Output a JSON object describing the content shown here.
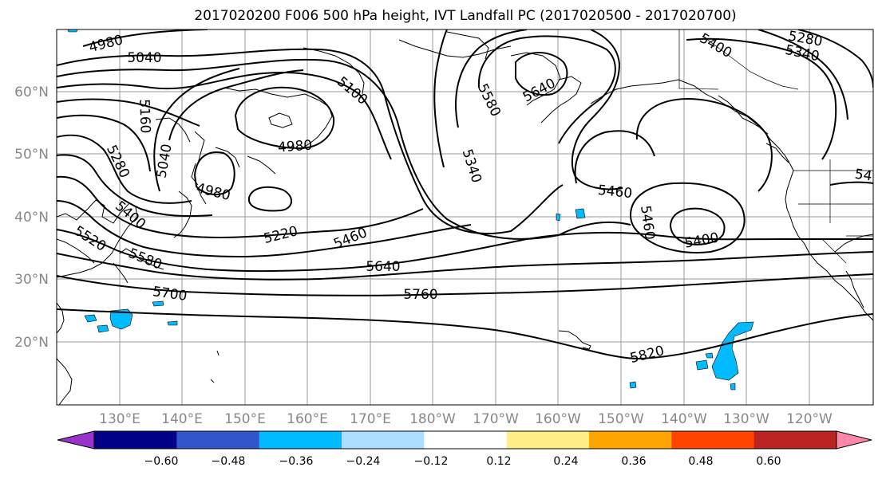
{
  "title": "2017020200 F006 500 hPa height, IVT Landfall PC (2017020500 - 2017020700)",
  "lat_labels": [
    "60°N",
    "50°N",
    "40°N",
    "30°N",
    "20°N"
  ],
  "lon_labels": [
    "130°E",
    "140°E",
    "150°E",
    "160°E",
    "170°E",
    "180°W",
    "170°W",
    "160°W",
    "150°W",
    "140°W",
    "130°W",
    "120°W"
  ],
  "contour_labels": [
    "4980",
    "5040",
    "5160",
    "5280",
    "5040",
    "4980",
    "4980",
    "5100",
    "5580",
    "5640",
    "5400",
    "5340",
    "5280",
    "5340",
    "5520",
    "5400",
    "5580",
    "5220",
    "5460",
    "5640",
    "5700",
    "5760",
    "5820",
    "5460",
    "5460",
    "5400",
    "54"
  ],
  "colorbar": {
    "colors": [
      "#9933cc",
      "#000088",
      "#3355cc",
      "#00bbff",
      "#aaddff",
      "#ffffff",
      "#ffee88",
      "#ffa500",
      "#ff4400",
      "#bb2222",
      "#ff88aa"
    ],
    "tick_labels": [
      "−0.60",
      "−0.48",
      "−0.36",
      "−0.24",
      "−0.12",
      "0.12",
      "0.24",
      "0.36",
      "0.48",
      "0.60"
    ]
  },
  "colors": {
    "grid": "#999999",
    "contour": "#000000",
    "ivt_fill": "#00bbff"
  }
}
